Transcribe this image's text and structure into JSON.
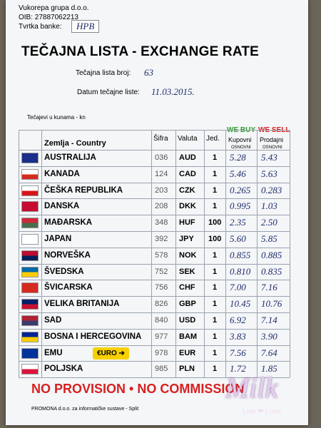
{
  "header": {
    "company": "Vukorepa grupa d.o.o.",
    "oib": "OIB: 27887062213",
    "bank_label": "Tvrtka banke:",
    "bank_value": "HPB",
    "title": "TEČAJNA LISTA - EXCHANGE RATE",
    "list_number_label": "Tečajna lista broj:",
    "list_number_value": "63",
    "date_label": "Datum tečajne liste:",
    "date_value": "11.03.2015.",
    "currency_note": "Tečajevi u kunama - kn"
  },
  "table": {
    "columns": {
      "country": "Zemlja - Country",
      "code": "Šifra",
      "currency": "Valuta",
      "unit": "Jed.",
      "buy_en": "WE BUY",
      "buy": "Kupovni",
      "buy_sub": "OSNOVNI",
      "sell_en": "WE SELL",
      "sell": "Prodajni",
      "sell_sub": "OSNOVNI"
    },
    "rows": [
      {
        "country": "AUSTRALIJA",
        "code": "036",
        "currency": "AUD",
        "unit": "1",
        "buy": "5.28",
        "sell": "5.43"
      },
      {
        "country": "KANADA",
        "code": "124",
        "currency": "CAD",
        "unit": "1",
        "buy": "5.46",
        "sell": "5.63"
      },
      {
        "country": "ČEŠKA REPUBLIKA",
        "code": "203",
        "currency": "CZK",
        "unit": "1",
        "buy": "0.265",
        "sell": "0.283"
      },
      {
        "country": "DANSKA",
        "code": "208",
        "currency": "DKK",
        "unit": "1",
        "buy": "0.995",
        "sell": "1.03"
      },
      {
        "country": "MAĐARSKA",
        "code": "348",
        "currency": "HUF",
        "unit": "100",
        "buy": "2.35",
        "sell": "2.50"
      },
      {
        "country": "JAPAN",
        "code": "392",
        "currency": "JPY",
        "unit": "100",
        "buy": "5.60",
        "sell": "5.85"
      },
      {
        "country": "NORVEŠKA",
        "code": "578",
        "currency": "NOK",
        "unit": "1",
        "buy": "0.855",
        "sell": "0.885"
      },
      {
        "country": "ŠVEDSKA",
        "code": "752",
        "currency": "SEK",
        "unit": "1",
        "buy": "0.810",
        "sell": "0.835"
      },
      {
        "country": "ŠVICARSKA",
        "code": "756",
        "currency": "CHF",
        "unit": "1",
        "buy": "7.00",
        "sell": "7.16"
      },
      {
        "country": "VELIKA BRITANIJA",
        "code": "826",
        "currency": "GBP",
        "unit": "1",
        "buy": "10.45",
        "sell": "10.76"
      },
      {
        "country": "SAD",
        "code": "840",
        "currency": "USD",
        "unit": "1",
        "buy": "6.92",
        "sell": "7.14"
      },
      {
        "country": "BOSNA I HERCEGOVINA",
        "code": "977",
        "currency": "BAM",
        "unit": "1",
        "buy": "3.83",
        "sell": "3.90"
      },
      {
        "country": "EMU",
        "code": "978",
        "currency": "EUR",
        "unit": "1",
        "buy": "7.56",
        "sell": "7.64"
      },
      {
        "country": "POLJSKA",
        "code": "985",
        "currency": "PLN",
        "unit": "1",
        "buy": "1.72",
        "sell": "1.85"
      }
    ],
    "euro_badge": "€URO ➔"
  },
  "banner": "NO PROVISION • NO COMMISSION",
  "footer": "PROMONA d.o.o. za informatičke sustave - Split",
  "watermark": {
    "name": "Milk",
    "tagline": "Live ❤ Love"
  }
}
